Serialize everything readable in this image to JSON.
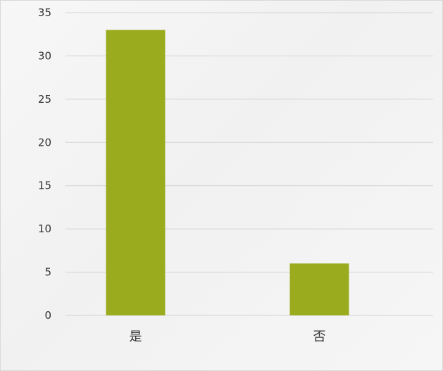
{
  "chart_data": {
    "type": "bar",
    "categories": [
      "是",
      "否"
    ],
    "values": [
      33,
      6
    ],
    "ylim": [
      0,
      35
    ],
    "yticks": [
      0,
      5,
      10,
      15,
      20,
      25,
      30,
      35
    ],
    "grid": true,
    "legend": "none",
    "title": "",
    "xlabel": "",
    "ylabel": ""
  },
  "colors": {
    "bar": "#9aab1e",
    "grid": "#d4d4d4",
    "text": "#333333"
  }
}
